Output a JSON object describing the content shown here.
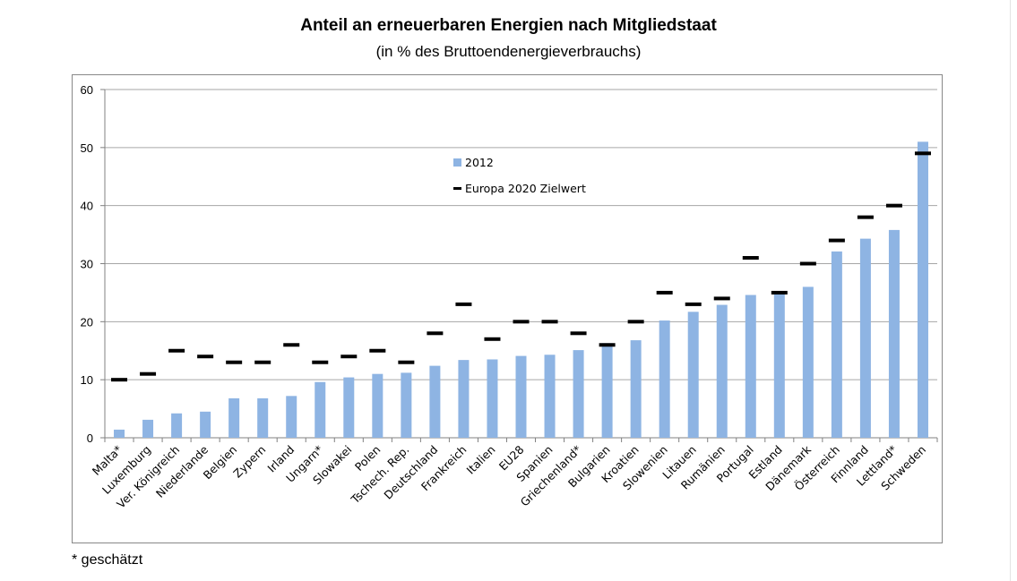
{
  "title": "Anteil an erneuerbaren Energien nach Mitgliedstaat",
  "subtitle": "(in % des Bruttoendenergieverbrauchs)",
  "footnote": "* geschätzt",
  "colors": {
    "bar": "#8EB4E3",
    "target": "#000000",
    "grid": "#a6a6a6"
  },
  "chart_data": {
    "type": "bar",
    "title": "Anteil an erneuerbaren Energien nach Mitgliedstaat",
    "subtitle": "(in % des Bruttoendenergieverbrauchs)",
    "categories": [
      "Malta*",
      "Luxemburg",
      "Ver. Königreich",
      "Niederlande",
      "Belgien",
      "Zypern",
      "Irland",
      "Ungarn*",
      "Slowakei",
      "Polen",
      "Tschech. Rep.",
      "Deutschland",
      "Frankreich",
      "Italien",
      "EU28",
      "Spanien",
      "Griechenland*",
      "Bulgarien",
      "Kroatien",
      "Slowenien",
      "Litauen",
      "Rumänien",
      "Portugal",
      "Estland",
      "Dänemark",
      "Österreich",
      "Finnland",
      "Lettland*",
      "Schweden"
    ],
    "series": [
      {
        "name": "2012",
        "kind": "bar",
        "values": [
          1.4,
          3.1,
          4.2,
          4.5,
          6.8,
          6.8,
          7.2,
          9.6,
          10.4,
          11.0,
          11.2,
          12.4,
          13.4,
          13.5,
          14.1,
          14.3,
          15.1,
          16.3,
          16.8,
          20.2,
          21.7,
          22.9,
          24.6,
          25.2,
          26.0,
          32.1,
          34.3,
          35.8,
          51.0
        ]
      },
      {
        "name": "Europa 2020 Zielwert",
        "kind": "marker",
        "values": [
          10,
          11,
          15,
          14,
          13,
          13,
          16,
          13,
          14,
          15,
          13,
          18,
          23,
          17,
          20,
          20,
          18,
          16,
          20,
          25,
          23,
          24,
          31,
          25,
          30,
          34,
          38,
          40,
          49
        ]
      }
    ],
    "ylim": [
      0,
      60
    ],
    "yticks": [
      0,
      10,
      20,
      30,
      40,
      50,
      60
    ],
    "grid": true,
    "legend_position": "center-upper",
    "xlabel": "",
    "ylabel": ""
  }
}
